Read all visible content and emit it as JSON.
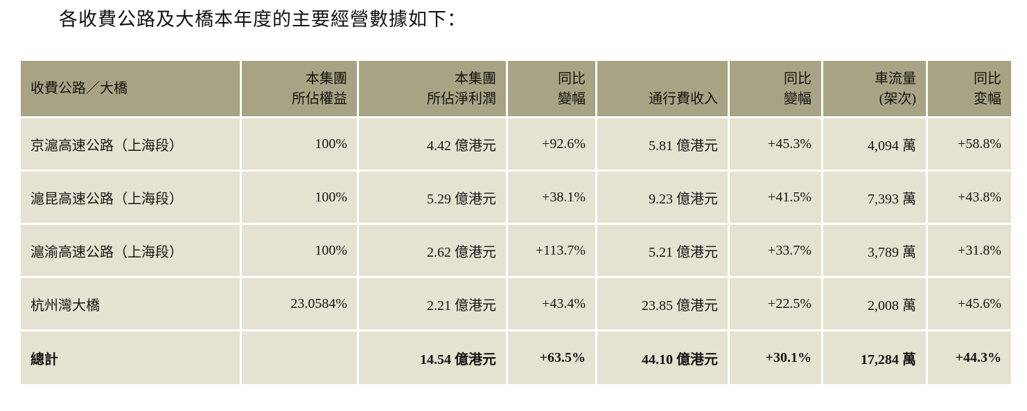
{
  "title": "各收費公路及大橋本年度的主要經營數據如下：",
  "colors": {
    "header_bg": "#a8a384",
    "row_bg": "#e5e2d2",
    "text": "#161513"
  },
  "table": {
    "header": {
      "c1": {
        "l1": "收費公路／大橋"
      },
      "c2": {
        "l1": "本集團",
        "l2": "所佔權益"
      },
      "c3": {
        "l1": "本集團",
        "l2": "所佔淨利潤"
      },
      "c4": {
        "l1": "同比",
        "l2": "變幅"
      },
      "c5": {
        "l1": "通行費收入"
      },
      "c6": {
        "l1": "同比",
        "l2": "變幅"
      },
      "c7": {
        "l1": "車流量",
        "l2": "(架次)"
      },
      "c8": {
        "l1": "同比",
        "l2": "変幅"
      }
    },
    "rows": [
      {
        "cells": [
          "京滬高速公路（上海段）",
          "100%",
          "4.42 億港元",
          "+92.6%",
          "5.81 億港元",
          "+45.3%",
          "4,094 萬",
          "+58.8%"
        ]
      },
      {
        "cells": [
          "滬昆高速公路（上海段）",
          "100%",
          "5.29 億港元",
          "+38.1%",
          "9.23 億港元",
          "+41.5%",
          "7,393 萬",
          "+43.8%"
        ]
      },
      {
        "cells": [
          "滬渝高速公路（上海段）",
          "100%",
          "2.62 億港元",
          "+113.7%",
          "5.21 億港元",
          "+33.7%",
          "3,789 萬",
          "+31.8%"
        ]
      },
      {
        "cells": [
          "杭州灣大橋",
          "23.0584%",
          "2.21 億港元",
          "+43.4%",
          "23.85 億港元",
          "+22.5%",
          "2,008 萬",
          "+45.6%"
        ]
      }
    ],
    "total": {
      "cells": [
        "總計",
        "",
        "14.54 億港元",
        "+63.5%",
        "44.10 億港元",
        "+30.1%",
        "17,284 萬",
        "+44.3%"
      ]
    }
  }
}
